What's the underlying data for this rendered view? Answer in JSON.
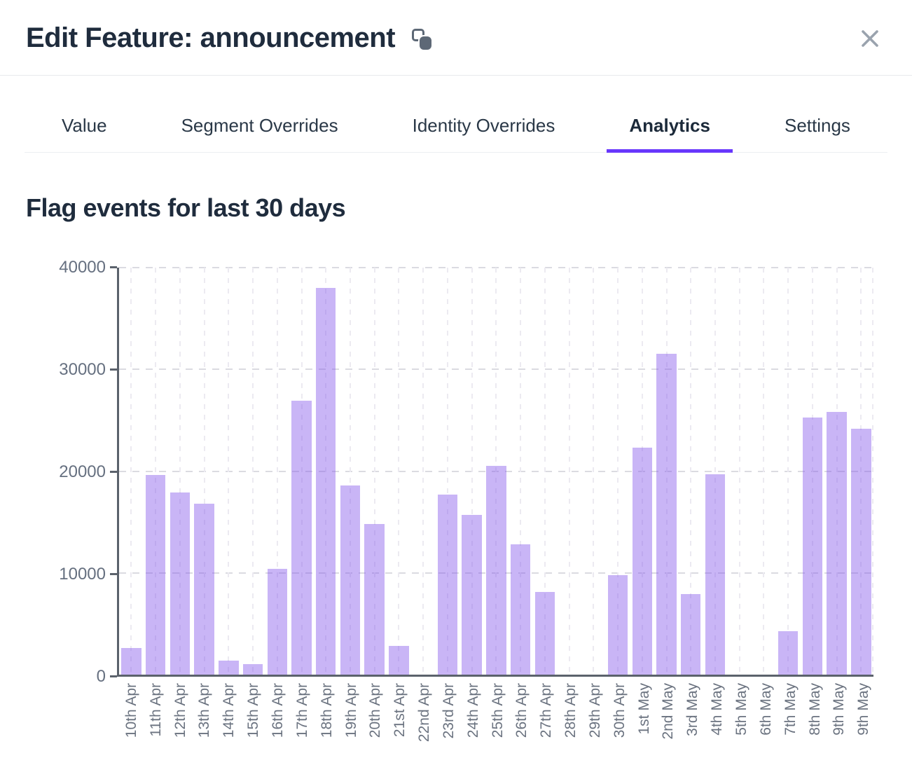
{
  "header": {
    "title": "Edit Feature: announcement",
    "copy_icon": "copy-feature-name",
    "close_icon": "close"
  },
  "tabs": [
    {
      "label": "Value",
      "active": false
    },
    {
      "label": "Segment Overrides",
      "active": false
    },
    {
      "label": "Identity Overrides",
      "active": false
    },
    {
      "label": "Analytics",
      "active": true
    },
    {
      "label": "Settings",
      "active": false
    }
  ],
  "colors": {
    "accent": "#6837fc",
    "bar": "#c9b5f6",
    "axis": "#5b626c",
    "text_dark": "#1f2c3d",
    "text_muted": "#6b7380",
    "close_icon": "#9aa3ae",
    "copy_icon": "#5d6876"
  },
  "chart_data": {
    "type": "bar",
    "title": "Flag events for last 30 days",
    "categories": [
      "10th Apr",
      "11th Apr",
      "12th Apr",
      "13th Apr",
      "14th Apr",
      "15th Apr",
      "16th Apr",
      "17th Apr",
      "18th Apr",
      "19th Apr",
      "20th Apr",
      "21st Apr",
      "22nd Apr",
      "23rd Apr",
      "24th Apr",
      "25th Apr",
      "26th Apr",
      "27th Apr",
      "28th Apr",
      "29th Apr",
      "30th Apr",
      "1st May",
      "2nd May",
      "3rd May",
      "4th May",
      "5th May",
      "6th May",
      "7th May",
      "8th May",
      "9th May",
      "9th May"
    ],
    "values": [
      2600,
      19600,
      17900,
      16800,
      1400,
      1000,
      10400,
      26900,
      38000,
      18600,
      14800,
      2800,
      0,
      17700,
      15700,
      20500,
      12800,
      8100,
      0,
      0,
      9800,
      22300,
      31500,
      7900,
      19700,
      0,
      0,
      4300,
      25300,
      25800,
      24200
    ],
    "xlabel": "",
    "ylabel": "",
    "ylim": [
      0,
      40000
    ],
    "yticks": [
      0,
      10000,
      20000,
      30000,
      40000
    ],
    "grid": "dashed",
    "legend_position": "none"
  }
}
